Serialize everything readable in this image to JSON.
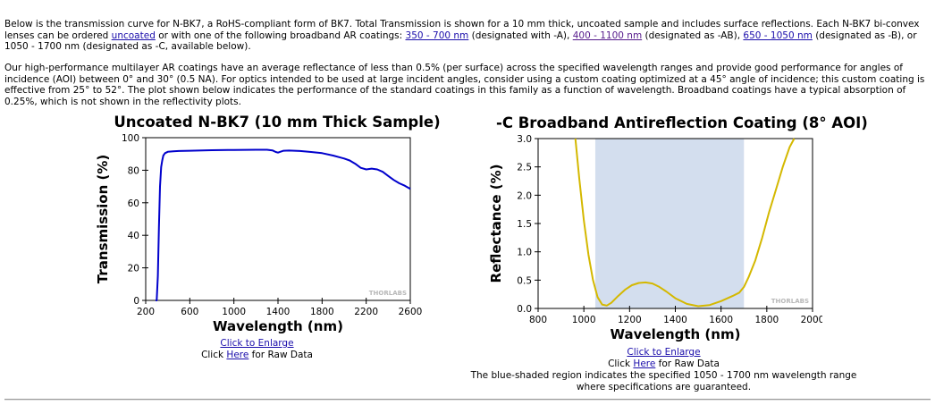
{
  "intro": {
    "p1": {
      "t1": "Below is the transmission curve for N-BK7, a RoHS-compliant form of BK7. Total Transmission is shown for a 10 mm thick, uncoated sample and includes surface reflections. Each N-BK7 bi-convex lenses can be ordered ",
      "link_uncoated": "uncoated",
      "t2": " or with one of the following broadband AR coatings: ",
      "link_a": "350 - 700 nm",
      "t3": " (designated with -A), ",
      "link_ab": "400 - 1100 nm",
      "t4": " (designated as -AB), ",
      "link_b": "650 - 1050 nm",
      "t5": " (designated as -B), or 1050 - 1700 nm (designated as -C, available below)."
    },
    "p2": "Our high-performance multilayer AR coatings have an average reflectance of less than 0.5% (per surface) across the specified wavelength ranges and provide good performance for angles of incidence (AOI) between 0° and 30° (0.5 NA). For optics intended to be used at large incident angles, consider using a custom coating optimized at a 45° angle of incidence; this custom coating is effective from 25° to 52°. The plot shown below indicates the performance of the standard coatings in this family as a function of wavelength. Broadband coatings have a typical absorption of 0.25%, which is not shown in the reflectivity plots."
  },
  "left_caption": {
    "enlarge": "Click to Enlarge",
    "raw_pre": "Click ",
    "raw_link": "Here",
    "raw_post": " for Raw Data"
  },
  "right_caption": {
    "enlarge": "Click to Enlarge",
    "raw_pre": "Click ",
    "raw_link": "Here",
    "raw_post": " for Raw Data",
    "note1": "The blue-shaded region indicates the specified 1050 - 1700 nm wavelength range",
    "note2": "where specifications are guaranteed."
  },
  "watermark": "THORLABS",
  "colors": {
    "transmission_line": "#0000cc",
    "reflectance_line": "#d4b800",
    "shade": "#d3deee",
    "link": "#1a0dab",
    "link_visited": "#551a8b"
  },
  "chart_data": [
    {
      "type": "line",
      "title": "Uncoated N-BK7 (10 mm Thick Sample)",
      "xlabel": "Wavelength (nm)",
      "ylabel": "Transmission (%)",
      "xlim": [
        200,
        2600
      ],
      "ylim": [
        0,
        100
      ],
      "xticks": [
        200,
        600,
        1000,
        1400,
        1800,
        2200,
        2600
      ],
      "yticks": [
        0,
        20,
        40,
        60,
        80,
        100
      ],
      "grid": false,
      "series": [
        {
          "x": [
            290,
            300,
            310,
            320,
            330,
            340,
            350,
            360,
            375,
            400,
            450,
            500,
            600,
            800,
            1000,
            1200,
            1300,
            1350,
            1380,
            1400,
            1420,
            1450,
            1500,
            1600,
            1700,
            1800,
            1900,
            2000,
            2050,
            2100,
            2150,
            2200,
            2250,
            2300,
            2350,
            2400,
            2450,
            2500,
            2550,
            2600
          ],
          "y": [
            0,
            0,
            15,
            45,
            70,
            82,
            86,
            89,
            90.5,
            91.3,
            91.6,
            91.8,
            92,
            92.3,
            92.5,
            92.6,
            92.6,
            92.2,
            91.2,
            90.8,
            91.3,
            92,
            92.1,
            91.8,
            91.2,
            90.5,
            89,
            87.2,
            86,
            84,
            81.5,
            80.5,
            81,
            80.5,
            79,
            76.5,
            74,
            72,
            70.5,
            68.5
          ]
        }
      ]
    },
    {
      "type": "line",
      "title": "-C Broadband Antireflection Coating (8° AOI)",
      "xlabel": "Wavelength (nm)",
      "ylabel": "Reflectance (%)",
      "xlim": [
        800,
        2000
      ],
      "ylim": [
        0,
        3.0
      ],
      "xticks": [
        800,
        1000,
        1200,
        1400,
        1600,
        1800,
        2000
      ],
      "yticks": [
        "0.0",
        "0.5",
        "1.0",
        "1.5",
        "2.0",
        "2.5",
        "3.0"
      ],
      "shaded_range": [
        1050,
        1700
      ],
      "grid": false,
      "series": [
        {
          "x": [
            963,
            980,
            1000,
            1020,
            1040,
            1060,
            1080,
            1100,
            1120,
            1150,
            1180,
            1210,
            1240,
            1270,
            1300,
            1330,
            1360,
            1400,
            1450,
            1500,
            1550,
            1600,
            1650,
            1680,
            1700,
            1720,
            1750,
            1780,
            1810,
            1840,
            1870,
            1900,
            1920
          ],
          "y": [
            3.0,
            2.3,
            1.55,
            0.95,
            0.5,
            0.2,
            0.07,
            0.05,
            0.1,
            0.22,
            0.33,
            0.41,
            0.45,
            0.46,
            0.44,
            0.38,
            0.3,
            0.18,
            0.08,
            0.04,
            0.06,
            0.13,
            0.22,
            0.28,
            0.38,
            0.55,
            0.85,
            1.25,
            1.7,
            2.1,
            2.5,
            2.85,
            3.0
          ]
        }
      ]
    }
  ]
}
